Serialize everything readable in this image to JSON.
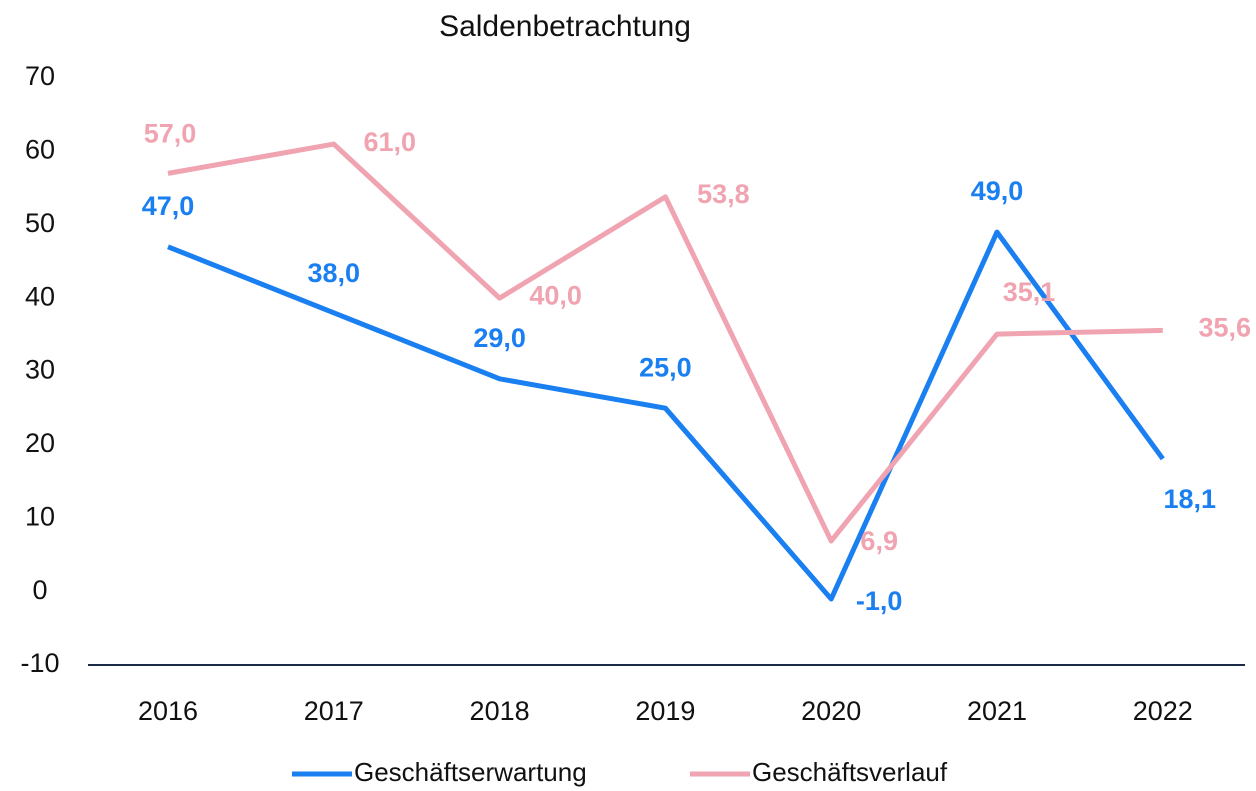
{
  "chart_data": {
    "type": "line",
    "title": "Saldenbetrachtung",
    "categories": [
      "2016",
      "2017",
      "2018",
      "2019",
      "2020",
      "2021",
      "2022"
    ],
    "series": [
      {
        "name": "Geschäftserwartung",
        "color": "#1a7ff0",
        "values": [
          47,
          38,
          29,
          25,
          -1,
          49,
          18.1
        ],
        "value_labels": [
          "47,0",
          "38,0",
          "29,0",
          "25,0",
          "-1,0",
          "49,0",
          "18,1"
        ]
      },
      {
        "name": "Geschäftsverlauf",
        "color": "#f0a3b0",
        "values": [
          57,
          61,
          40,
          53.8,
          6.9,
          35.1,
          35.6
        ],
        "value_labels": [
          "57,0",
          "61,0",
          "40,0",
          "53,8",
          "6,9",
          "35,1",
          "35,6"
        ]
      }
    ],
    "ylim": [
      -10,
      70
    ],
    "yticks": [
      -10,
      0,
      10,
      20,
      30,
      40,
      50,
      60,
      70
    ],
    "grid": false
  }
}
